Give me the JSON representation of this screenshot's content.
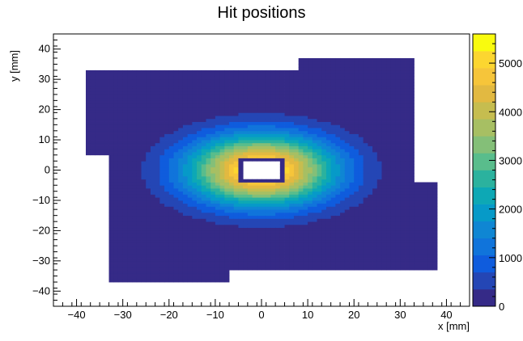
{
  "chart_data": {
    "type": "heatmap",
    "title": "Hit positions",
    "xlabel": "x [mm]",
    "ylabel": "y [mm]",
    "xlim": [
      -45,
      45
    ],
    "ylim": [
      -45,
      45
    ],
    "zlim": [
      0,
      5600
    ],
    "x_ticks": [
      -40,
      -30,
      -20,
      -10,
      0,
      10,
      20,
      30,
      40
    ],
    "y_ticks": [
      -40,
      -30,
      -20,
      -10,
      0,
      10,
      20,
      30,
      40
    ],
    "z_ticks": [
      0,
      1000,
      2000,
      3000,
      4000,
      5000
    ],
    "x_tick_labels": [
      "−40",
      "−30",
      "−20",
      "−10",
      "0",
      "10",
      "20",
      "30",
      "40"
    ],
    "y_tick_labels": [
      "−40",
      "−30",
      "−20",
      "−10",
      "0",
      "10",
      "20",
      "30",
      "40"
    ],
    "z_tick_labels": [
      "0",
      "1000",
      "2000",
      "3000",
      "4000",
      "5000"
    ],
    "grid": false,
    "palette": "kBird",
    "palette_colors": [
      "#352a87",
      "#2446b5",
      "#0f5cdd",
      "#1074db",
      "#0f86d3",
      "#069ac8",
      "#0da8b5",
      "#2bb29e",
      "#59bd8c",
      "#84bf78",
      "#a7bf63",
      "#c6bd4f",
      "#e2b941",
      "#f6c53a",
      "#fcd630",
      "#f9fb0e"
    ],
    "distribution": {
      "description_of_shape": "elliptical hit density centered at origin with rectangular empty beam hole",
      "center": [
        0,
        0
      ],
      "sigma_x": 11.0,
      "sigma_y": 8.0,
      "peak_value": 5600,
      "hole_x": [
        -5,
        5
      ],
      "hole_y": [
        -4,
        4
      ],
      "hole_rim_value": 5600
    },
    "coverage_regions": [
      {
        "x": [
          -38,
          -33
        ],
        "y": [
          5,
          33
        ]
      },
      {
        "x": [
          -33,
          8
        ],
        "y": [
          -37,
          33
        ]
      },
      {
        "x": [
          8,
          33
        ],
        "y": [
          -33,
          37
        ]
      },
      {
        "x": [
          33,
          38
        ],
        "y": [
          -33,
          -4
        ]
      },
      {
        "x": [
          -33,
          -7
        ],
        "y": [
          -37,
          -33
        ]
      },
      {
        "x": [
          -7,
          33
        ],
        "y": [
          -33,
          -33
        ]
      }
    ],
    "empty_regions": [
      {
        "x": [
          -38,
          -33
        ],
        "y": [
          -37,
          5
        ]
      },
      {
        "x": [
          -7,
          33
        ],
        "y": [
          -37,
          -33
        ]
      },
      {
        "x": [
          33,
          38
        ],
        "y": [
          -4,
          37
        ]
      },
      {
        "x": [
          -38,
          7
        ],
        "y": [
          33,
          37
        ]
      }
    ]
  }
}
